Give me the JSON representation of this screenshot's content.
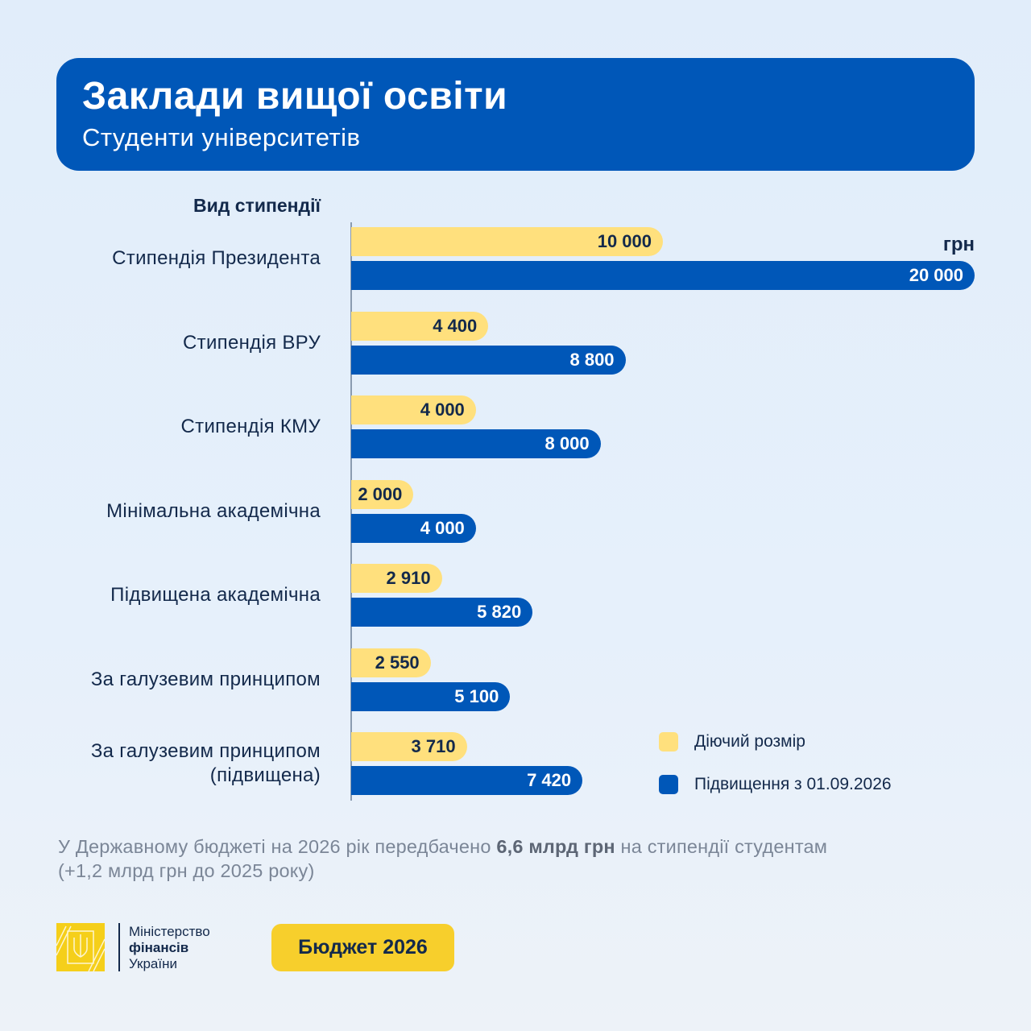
{
  "header": {
    "title": "Заклади вищої освіти",
    "subtitle": "Студенти університетів"
  },
  "chart_data": {
    "type": "bar",
    "orientation": "horizontal",
    "category_header": "Вид стипендії",
    "unit": "грн",
    "categories": [
      "Стипендія Президента",
      "Стипендія ВРУ",
      "Стипендія КМУ",
      "Мінімальна академічна",
      "Підвищена академічна",
      "За галузевим принципом",
      "За галузевим принципом (підвищена)"
    ],
    "category_lines": [
      [
        "Стипендія Президента"
      ],
      [
        "Стипендія ВРУ"
      ],
      [
        "Стипендія КМУ"
      ],
      [
        "Мінімальна академічна"
      ],
      [
        "Підвищена академічна"
      ],
      [
        "За галузевим принципом"
      ],
      [
        "За галузевим принципом",
        "(підвищена)"
      ]
    ],
    "series": [
      {
        "name": "Діючий розмір",
        "color": "#ffe07d",
        "values": [
          10000,
          4400,
          4000,
          2000,
          2910,
          2550,
          3710
        ],
        "labels": [
          "10 000",
          "4 400",
          "4 000",
          "2 000",
          "2 910",
          "2 550",
          "3 710"
        ]
      },
      {
        "name": "Підвищення з 01.09.2026",
        "color": "#0057b8",
        "values": [
          20000,
          8800,
          8000,
          4000,
          5820,
          5100,
          7420
        ],
        "labels": [
          "20 000",
          "8 800",
          "8 000",
          "4 000",
          "5 820",
          "5 100",
          "7 420"
        ]
      }
    ],
    "xlim": [
      0,
      20000
    ],
    "grid": false,
    "legend": "bottom-right"
  },
  "note": {
    "pre": "У Державному бюджеті на 2026 рік передбачено ",
    "bold": "6,6 млрд грн",
    "post": " на стипендії студентам",
    "line2": "(+1,2 млрд грн до 2025 року)"
  },
  "footer": {
    "ministry_line1": "Міністерство",
    "ministry_line2": "фінансів",
    "ministry_line3": "України",
    "budget_label": "Бюджет 2026"
  }
}
